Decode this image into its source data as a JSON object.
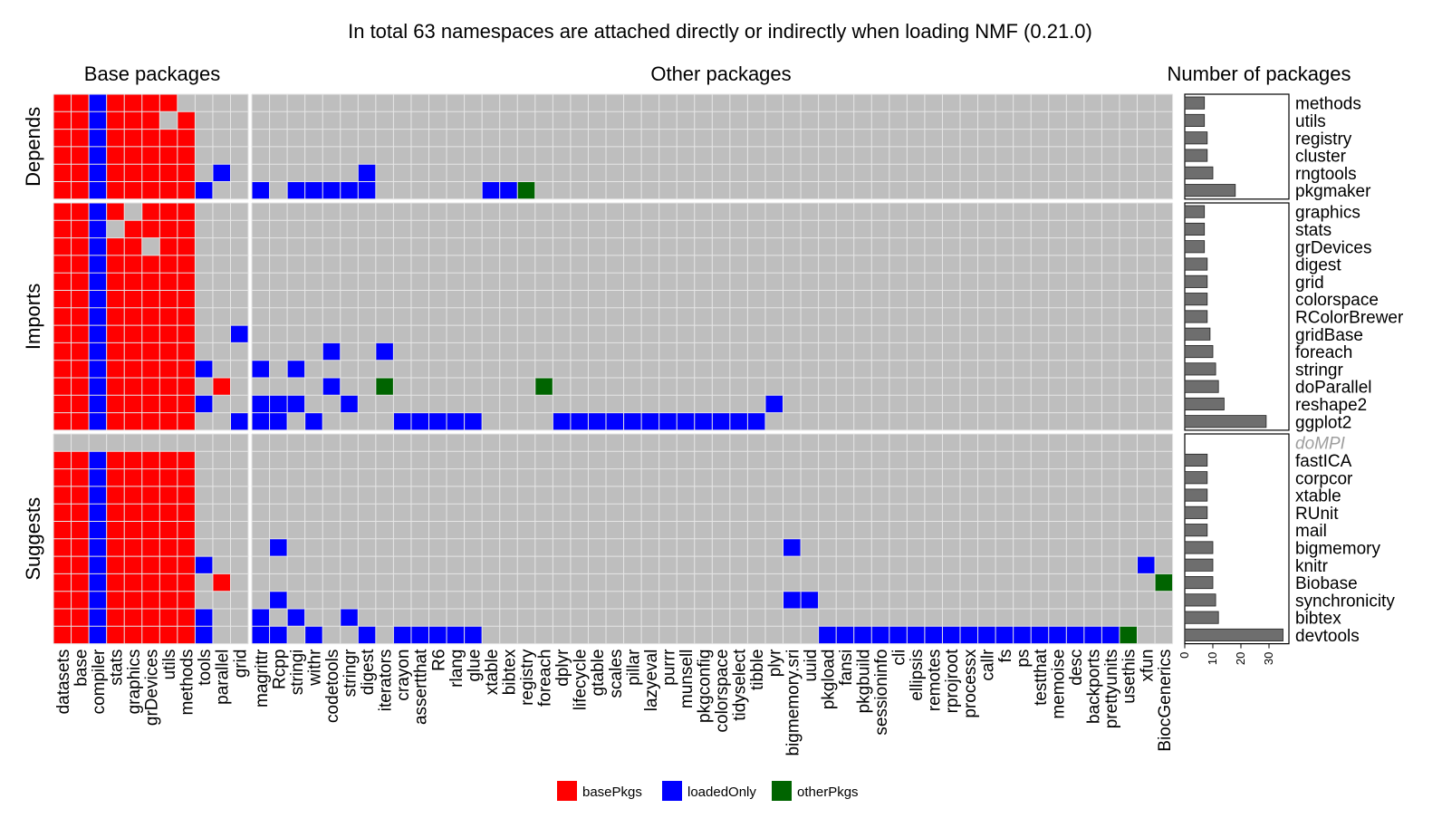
{
  "chart_data": {
    "type": "heatmap",
    "title": "In total 63 namespaces are attached directly or indirectly when loading NMF (0.21.0)",
    "column_groups": [
      {
        "label": "Base packages",
        "columns": [
          "datasets",
          "base",
          "compiler",
          "stats",
          "graphics",
          "grDevices",
          "utils",
          "methods",
          "tools",
          "parallel",
          "grid"
        ]
      },
      {
        "label": "Other packages",
        "columns": [
          "magrittr",
          "Rcpp",
          "stringi",
          "withr",
          "codetools",
          "stringr",
          "digest",
          "iterators",
          "crayon",
          "assertthat",
          "R6",
          "rlang",
          "glue",
          "xtable",
          "bibtex",
          "registry",
          "foreach",
          "dplyr",
          "lifecycle",
          "gtable",
          "scales",
          "pillar",
          "lazyeval",
          "purrr",
          "munsell",
          "pkgconfig",
          "colorspace",
          "tidyselect",
          "tibble",
          "plyr",
          "bigmemory.sri",
          "uuid",
          "pkgload",
          "fansi",
          "pkgbuild",
          "sessioninfo",
          "cli",
          "ellipsis",
          "remotes",
          "rprojroot",
          "processx",
          "callr",
          "fs",
          "ps",
          "testthat",
          "memoise",
          "desc",
          "backports",
          "prettyunits",
          "usethis",
          "xfun",
          "BiocGenerics"
        ]
      }
    ],
    "bar_panel_label": "Number of packages",
    "row_groups": [
      {
        "label": "Depends",
        "rows": [
          {
            "name": "methods",
            "count": 7,
            "base": "rrbrrrrx",
            "other": []
          },
          {
            "name": "utils",
            "count": 7,
            "base": "rrbrrrxr",
            "other": []
          },
          {
            "name": "registry",
            "count": 8,
            "base": "rrbrrrrr",
            "other": []
          },
          {
            "name": "cluster",
            "count": 8,
            "base": "rrbrrrrr",
            "other": []
          },
          {
            "name": "rngtools",
            "count": 10,
            "base": "rrbrrrrr.b.",
            "other": [
              [
                "digest",
                "b"
              ]
            ]
          },
          {
            "name": "pkgmaker",
            "count": 18,
            "base": "rrbrrrrrb..",
            "other": [
              [
                "magrittr",
                "b"
              ],
              [
                "stringi",
                "b"
              ],
              [
                "withr",
                "b"
              ],
              [
                "codetools",
                "b"
              ],
              [
                "stringr",
                "b"
              ],
              [
                "digest",
                "b"
              ],
              [
                "xtable",
                "b"
              ],
              [
                "bibtex",
                "b"
              ],
              [
                "registry",
                "g"
              ]
            ]
          }
        ]
      },
      {
        "label": "Imports",
        "rows": [
          {
            "name": "graphics",
            "count": 7,
            "base": "rrbrxrrr",
            "other": []
          },
          {
            "name": "stats",
            "count": 7,
            "base": "rrbxrrrr",
            "other": []
          },
          {
            "name": "grDevices",
            "count": 7,
            "base": "rrbrrxrr",
            "other": []
          },
          {
            "name": "digest",
            "count": 8,
            "base": "rrbrrrrr",
            "other": []
          },
          {
            "name": "grid",
            "count": 8,
            "base": "rrbrrrrr",
            "other": []
          },
          {
            "name": "colorspace",
            "count": 8,
            "base": "rrbrrrrr",
            "other": []
          },
          {
            "name": "RColorBrewer",
            "count": 8,
            "base": "rrbrrrrr",
            "other": []
          },
          {
            "name": "gridBase",
            "count": 9,
            "base": "rrbrrrrr..b",
            "other": []
          },
          {
            "name": "foreach",
            "count": 10,
            "base": "rrbrrrrr",
            "other": [
              [
                "codetools",
                "b"
              ],
              [
                "iterators",
                "b"
              ]
            ]
          },
          {
            "name": "stringr",
            "count": 11,
            "base": "rrbrrrrrb..",
            "other": [
              [
                "magrittr",
                "b"
              ],
              [
                "stringi",
                "b"
              ]
            ]
          },
          {
            "name": "doParallel",
            "count": 12,
            "base": "rrbrrrrr.r.",
            "other": [
              [
                "codetools",
                "b"
              ],
              [
                "iterators",
                "g"
              ],
              [
                "foreach",
                "g"
              ]
            ]
          },
          {
            "name": "reshape2",
            "count": 14,
            "base": "rrbrrrrrb..",
            "other": [
              [
                "magrittr",
                "b"
              ],
              [
                "Rcpp",
                "b"
              ],
              [
                "stringi",
                "b"
              ],
              [
                "stringr",
                "b"
              ],
              [
                "plyr",
                "b"
              ]
            ]
          },
          {
            "name": "ggplot2",
            "count": 29,
            "base": "rrbrrrrr..b",
            "other": [
              [
                "magrittr",
                "b"
              ],
              [
                "Rcpp",
                "b"
              ],
              [
                "withr",
                "b"
              ],
              [
                "crayon",
                "b"
              ],
              [
                "assertthat",
                "b"
              ],
              [
                "R6",
                "b"
              ],
              [
                "rlang",
                "b"
              ],
              [
                "glue",
                "b"
              ],
              [
                "dplyr",
                "b"
              ],
              [
                "lifecycle",
                "b"
              ],
              [
                "gtable",
                "b"
              ],
              [
                "scales",
                "b"
              ],
              [
                "pillar",
                "b"
              ],
              [
                "lazyeval",
                "b"
              ],
              [
                "purrr",
                "b"
              ],
              [
                "munsell",
                "b"
              ],
              [
                "pkgconfig",
                "b"
              ],
              [
                "colorspace",
                "b"
              ],
              [
                "tidyselect",
                "b"
              ],
              [
                "tibble",
                "b"
              ]
            ]
          }
        ]
      },
      {
        "label": "Suggests",
        "rows": [
          {
            "name": "doMPI",
            "count": 0,
            "unavailable": true,
            "base": "",
            "other": []
          },
          {
            "name": "fastICA",
            "count": 8,
            "base": "rrbrrrrr",
            "other": []
          },
          {
            "name": "corpcor",
            "count": 8,
            "base": "rrbrrrrr",
            "other": []
          },
          {
            "name": "xtable",
            "count": 8,
            "base": "rrbrrrrr",
            "other": []
          },
          {
            "name": "RUnit",
            "count": 8,
            "base": "rrbrrrrr",
            "other": []
          },
          {
            "name": "mail",
            "count": 8,
            "base": "rrbrrrrr",
            "other": []
          },
          {
            "name": "bigmemory",
            "count": 10,
            "base": "rrbrrrrr",
            "other": [
              [
                "Rcpp",
                "b"
              ],
              [
                "bigmemory.sri",
                "b"
              ]
            ]
          },
          {
            "name": "knitr",
            "count": 10,
            "base": "rrbrrrrrb..",
            "other": [
              [
                "xfun",
                "b"
              ]
            ]
          },
          {
            "name": "Biobase",
            "count": 10,
            "base": "rrbrrrrr.r.",
            "other": [
              [
                "BiocGenerics",
                "g"
              ]
            ]
          },
          {
            "name": "synchronicity",
            "count": 11,
            "base": "rrbrrrrr",
            "other": [
              [
                "Rcpp",
                "b"
              ],
              [
                "bigmemory.sri",
                "b"
              ],
              [
                "uuid",
                "b"
              ]
            ]
          },
          {
            "name": "bibtex",
            "count": 12,
            "base": "rrbrrrrrb..",
            "other": [
              [
                "magrittr",
                "b"
              ],
              [
                "stringi",
                "b"
              ],
              [
                "stringr",
                "b"
              ]
            ]
          },
          {
            "name": "devtools",
            "count": 35,
            "base": "rrbrrrrrb..",
            "other": [
              [
                "magrittr",
                "b"
              ],
              [
                "Rcpp",
                "b"
              ],
              [
                "withr",
                "b"
              ],
              [
                "digest",
                "b"
              ],
              [
                "crayon",
                "b"
              ],
              [
                "assertthat",
                "b"
              ],
              [
                "R6",
                "b"
              ],
              [
                "rlang",
                "b"
              ],
              [
                "glue",
                "b"
              ],
              [
                "pkgload",
                "b"
              ],
              [
                "fansi",
                "b"
              ],
              [
                "pkgbuild",
                "b"
              ],
              [
                "sessioninfo",
                "b"
              ],
              [
                "cli",
                "b"
              ],
              [
                "ellipsis",
                "b"
              ],
              [
                "remotes",
                "b"
              ],
              [
                "rprojroot",
                "b"
              ],
              [
                "processx",
                "b"
              ],
              [
                "callr",
                "b"
              ],
              [
                "fs",
                "b"
              ],
              [
                "ps",
                "b"
              ],
              [
                "testthat",
                "b"
              ],
              [
                "memoise",
                "b"
              ],
              [
                "desc",
                "b"
              ],
              [
                "backports",
                "b"
              ],
              [
                "prettyunits",
                "b"
              ],
              [
                "usethis",
                "g"
              ]
            ]
          }
        ]
      }
    ],
    "bar_axis": {
      "ticks": [
        0,
        10,
        20,
        30
      ],
      "range": [
        0,
        36
      ]
    },
    "legend": {
      "placement": "bottom",
      "items": [
        {
          "label": "basePkgs",
          "code": "r",
          "color": "#ff0000"
        },
        {
          "label": "loadedOnly",
          "code": "b",
          "color": "#0000ff"
        },
        {
          "label": "otherPkgs",
          "code": "g",
          "color": "#006400"
        }
      ]
    },
    "colors": {
      "empty": "#bebebe",
      "bar": "#6e6e6e",
      "grid": "#e6e6e6",
      "unavailable_label": "#9e9e9e"
    }
  }
}
